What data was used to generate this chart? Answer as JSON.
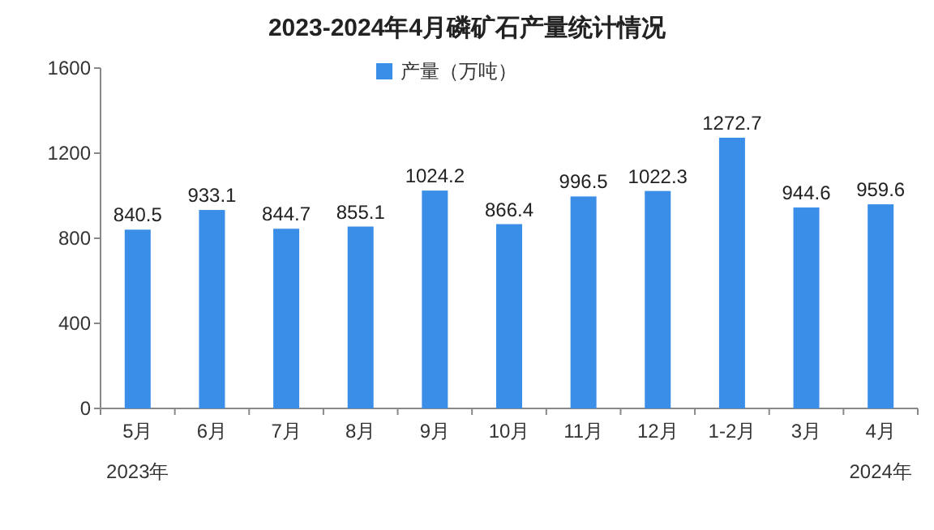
{
  "chart_data": {
    "type": "bar",
    "title": "2023-2024年4月磷矿石产量统计情况",
    "categories": [
      "5月",
      "6月",
      "7月",
      "8月",
      "9月",
      "10月",
      "11月",
      "12月",
      "1-2月",
      "3月",
      "4月"
    ],
    "series": [
      {
        "name": "产量（万吨）",
        "color": "#3b8ee8",
        "values": [
          840.5,
          933.1,
          844.7,
          855.1,
          1024.2,
          866.4,
          996.5,
          1022.3,
          1272.7,
          944.6,
          959.6
        ]
      }
    ],
    "ylim": [
      0,
      1600
    ],
    "yticks": [
      0,
      400,
      800,
      1200,
      1600
    ],
    "data_labels": true,
    "legend": "top",
    "grid": false,
    "annotations": [
      "2023年",
      "2024年"
    ]
  }
}
